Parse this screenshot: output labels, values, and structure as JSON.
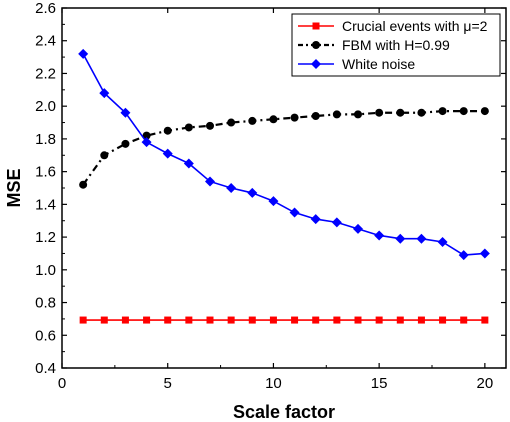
{
  "chart_data": {
    "type": "line",
    "xlabel": "Scale factor",
    "ylabel": "MSE",
    "xlim": [
      0,
      21
    ],
    "ylim": [
      0.4,
      2.6
    ],
    "xticks": [
      0,
      5,
      10,
      15,
      20
    ],
    "yticks": [
      0.4,
      0.6,
      0.8,
      1.0,
      1.2,
      1.4,
      1.6,
      1.8,
      2.0,
      2.2,
      2.4,
      2.6
    ],
    "grid": false,
    "legend_position": "top-right",
    "series": [
      {
        "name": "Crucial events with  μ=2",
        "color": "#ff0000",
        "marker": "square",
        "line_style": "solid",
        "x": [
          1,
          2,
          3,
          4,
          5,
          6,
          7,
          8,
          9,
          10,
          11,
          12,
          13,
          14,
          15,
          16,
          17,
          18,
          19,
          20
        ],
        "values": [
          0.693,
          0.693,
          0.693,
          0.693,
          0.693,
          0.693,
          0.693,
          0.693,
          0.693,
          0.693,
          0.693,
          0.693,
          0.693,
          0.693,
          0.693,
          0.693,
          0.693,
          0.693,
          0.693,
          0.693
        ]
      },
      {
        "name": "FBM with H=0.99",
        "color": "#000000",
        "marker": "circle",
        "line_style": "dash-dot",
        "x": [
          1,
          2,
          3,
          4,
          5,
          6,
          7,
          8,
          9,
          10,
          11,
          12,
          13,
          14,
          15,
          16,
          17,
          18,
          19,
          20
        ],
        "values": [
          1.52,
          1.7,
          1.77,
          1.82,
          1.85,
          1.87,
          1.88,
          1.9,
          1.91,
          1.92,
          1.93,
          1.94,
          1.95,
          1.95,
          1.96,
          1.96,
          1.96,
          1.97,
          1.97,
          1.97
        ]
      },
      {
        "name": "White noise",
        "color": "#0000ff",
        "marker": "diamond",
        "line_style": "solid",
        "x": [
          1,
          2,
          3,
          4,
          5,
          6,
          7,
          8,
          9,
          10,
          11,
          12,
          13,
          14,
          15,
          16,
          17,
          18,
          19,
          20
        ],
        "values": [
          2.32,
          2.08,
          1.96,
          1.78,
          1.71,
          1.65,
          1.54,
          1.5,
          1.47,
          1.42,
          1.35,
          1.31,
          1.29,
          1.25,
          1.21,
          1.19,
          1.19,
          1.17,
          1.09,
          1.1
        ]
      }
    ]
  }
}
